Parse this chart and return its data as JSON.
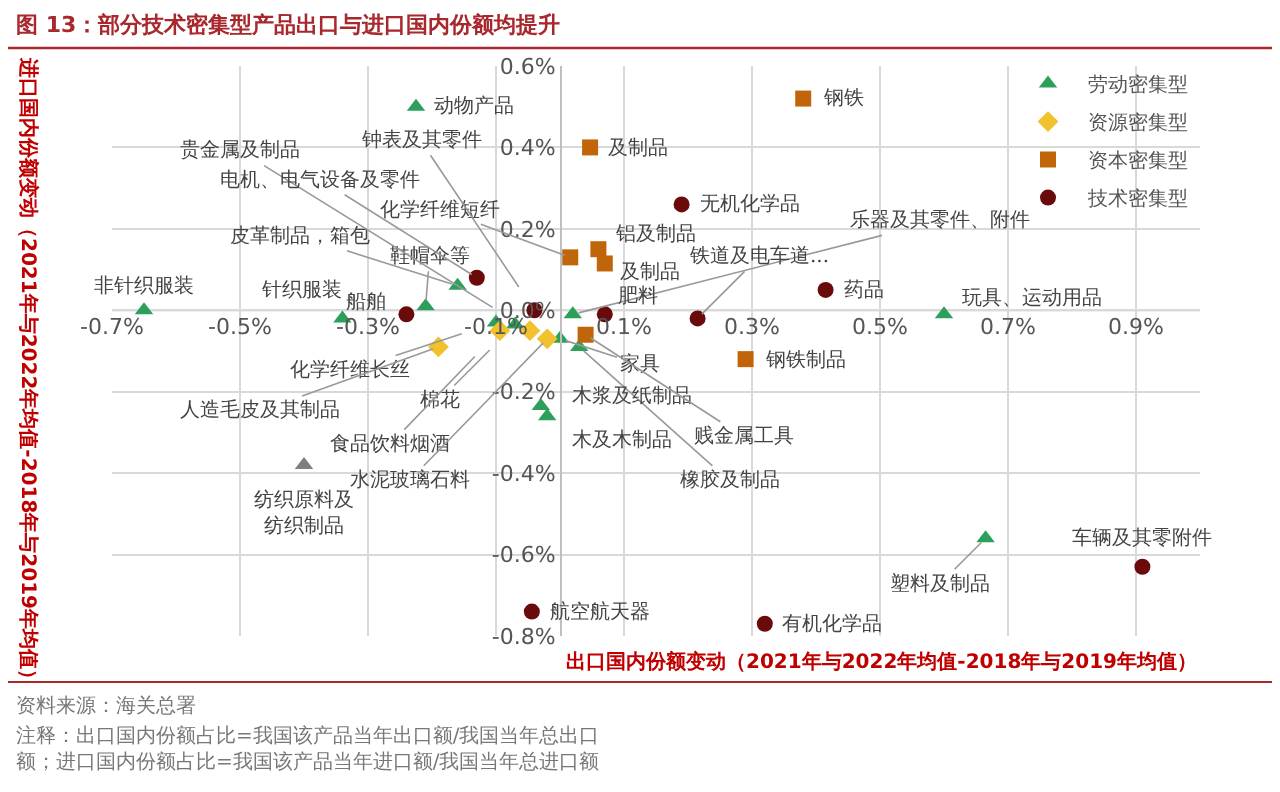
{
  "chart_data": {
    "type": "scatter",
    "title": "图 13：部分技术密集型产品出口与进口国内份额均提升",
    "xlabel": "出口国内份额变动（2021年与2022年均值-2018年与2019年均值）",
    "ylabel": "进口国内份额变动（2021年与2022年均值-2018年与2019年均值）",
    "xlim": [
      -0.7,
      1.0
    ],
    "xticks": [
      {
        "value": -0.7,
        "label": "-0.7%"
      },
      {
        "value": -0.5,
        "label": "-0.5%"
      },
      {
        "value": -0.3,
        "label": "-0.3%"
      },
      {
        "value": -0.1,
        "label": "-0.1%"
      },
      {
        "value": 0.1,
        "label": "0.1%"
      },
      {
        "value": 0.3,
        "label": "0.3%"
      },
      {
        "value": 0.5,
        "label": "0.5%"
      },
      {
        "value": 0.7,
        "label": "0.7%"
      },
      {
        "value": 0.9,
        "label": "0.9%"
      }
    ],
    "ylim": [
      -0.8,
      0.6
    ],
    "yticks": [
      {
        "value": -0.8,
        "label": "-0.8%"
      },
      {
        "value": -0.6,
        "label": "-0.6%"
      },
      {
        "value": -0.4,
        "label": "-0.4%"
      },
      {
        "value": -0.2,
        "label": "-0.2%"
      },
      {
        "value": 0,
        "label": "0.0%"
      },
      {
        "value": 0.2,
        "label": "0.2%"
      },
      {
        "value": 0.4,
        "label": "0.4%"
      },
      {
        "value": 0.6,
        "label": "0.6%"
      }
    ],
    "grid": true,
    "legend": "top right",
    "series": [
      {
        "name": "劳动密集型",
        "color": "#2ca05a",
        "marker": "triangle",
        "x": [
          -0.65,
          -0.225,
          -0.34,
          -0.21,
          -0.16,
          -0.1,
          -0.07,
          0.0,
          0.02,
          0.03,
          -0.03,
          -0.02,
          0.6,
          0.665,
          -0.4
        ],
        "values": [
          0.0,
          0.5,
          -0.02,
          0.01,
          0.06,
          -0.03,
          -0.035,
          -0.07,
          -0.01,
          -0.09,
          -0.235,
          -0.26,
          -0.01,
          -0.56,
          -0.38
        ],
        "colors": [
          "#2ca05a",
          "#2ca05a",
          "#2ca05a",
          "#2ca05a",
          "#2ca05a",
          "#2ca05a",
          "#2ca05a",
          "#2ca05a",
          "#2ca05a",
          "#2ca05a",
          "#2ca05a",
          "#2ca05a",
          "#2ca05a",
          "#2ca05a",
          "#7f7f7f"
        ],
        "value_labels": [
          "非针织服装",
          "动物产品",
          "针织服装",
          "鞋帽伞等",
          "皮革制品，箱包",
          "化学纤维长丝",
          "棉花",
          "家具",
          "乐器及其零件、附件",
          "橡胶及制品",
          "木浆及纸制品",
          "木及木制品",
          "玩具、运动用品",
          "塑料及制品",
          "纺织原料及纺织制品"
        ]
      },
      {
        "name": "资源密集型",
        "color": "#f2c12e",
        "marker": "diamond",
        "x": [
          -0.19,
          -0.094,
          -0.047,
          -0.02
        ],
        "values": [
          -0.09,
          -0.05,
          -0.05,
          -0.07
        ],
        "value_labels": [
          "人造毛皮及其制品",
          "食品饮料烟酒",
          "贵金属及制品",
          "水泥玻璃石料"
        ]
      },
      {
        "name": "资本密集型",
        "color": "#c0650a",
        "marker": "square",
        "x": [
          0.38,
          0.047,
          0.016,
          0.06,
          0.07,
          0.04,
          0.29
        ],
        "values": [
          0.52,
          0.4,
          0.13,
          0.15,
          0.115,
          -0.06,
          -0.12
        ],
        "value_labels": [
          "钢铁",
          "及制品",
          "化学纤维短纤",
          "铝及制品",
          "及制品",
          "贱金属工具",
          "钢铁制品"
        ]
      },
      {
        "name": "技术密集型",
        "color": "#6b0a0a",
        "marker": "circle",
        "x": [
          0.19,
          0.415,
          0.215,
          0.07,
          -0.13,
          -0.24,
          -0.04,
          -0.044,
          0.32,
          0.91
        ],
        "values": [
          0.26,
          0.05,
          -0.02,
          -0.01,
          0.08,
          -0.01,
          0.0,
          -0.74,
          -0.77,
          -0.63
        ],
        "value_labels": [
          "无机化学品",
          "药品",
          "铁道及电车道...",
          "肥料",
          "电机、电气设备及零件",
          "船舶",
          "钟表及其零件",
          "航空航天器",
          "有机化学品",
          "车辆及其零附件"
        ]
      }
    ],
    "annotations": [
      "资料来源：海关总署",
      "注释：出口国内份额占比=我国该产品当年出口额/我国当年总出口额；进口国内份额占比=我国该产品当年进口额/我国当年总进口额"
    ]
  }
}
